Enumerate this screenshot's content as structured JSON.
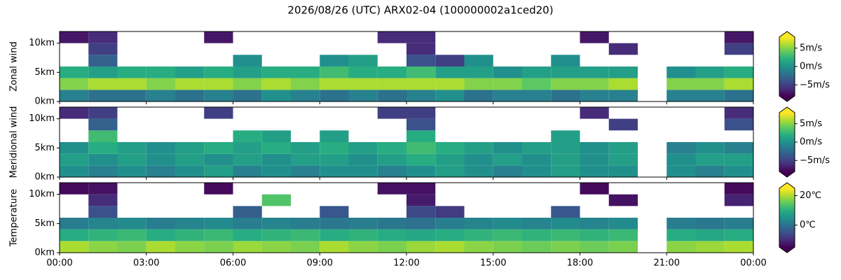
{
  "title": "2026/08/26 (UTC) ARX02-04 (100000002a1ced20)",
  "chart_data": [
    {
      "type": "heatmap",
      "ylabel": "Zonal wind",
      "colormap": "viridis",
      "extend": "both",
      "xbins": [
        0,
        1,
        2,
        3,
        4,
        5,
        6,
        7,
        8,
        9,
        10,
        11,
        12,
        13,
        14,
        15,
        16,
        17,
        18,
        19,
        20,
        21,
        22,
        23,
        24
      ],
      "ybins": [
        0,
        2,
        4,
        6,
        8,
        10,
        12
      ],
      "values": [
        [
          -1,
          -2,
          -2,
          -1,
          -2,
          -1,
          -2,
          0,
          -1,
          -2,
          -1,
          -2,
          -1,
          0,
          -2,
          -1,
          -1,
          -2,
          -1,
          -1,
          null,
          -1,
          -1,
          -2
        ],
        [
          5,
          6,
          6,
          5,
          6,
          6,
          5,
          6,
          5,
          6,
          6,
          6,
          6,
          6,
          5,
          5,
          4,
          5,
          5,
          6,
          null,
          5,
          5,
          6
        ],
        [
          2,
          1,
          2,
          2,
          1,
          2,
          1,
          2,
          2,
          3,
          2,
          2,
          3,
          1,
          1,
          0,
          1,
          1,
          1,
          1,
          null,
          0,
          1,
          2
        ],
        [
          null,
          -3,
          null,
          null,
          null,
          null,
          0,
          null,
          null,
          0,
          1,
          null,
          -4,
          -5,
          0,
          null,
          null,
          0,
          null,
          null,
          null,
          null,
          null,
          null
        ],
        [
          null,
          -5,
          null,
          null,
          null,
          null,
          null,
          null,
          null,
          null,
          null,
          null,
          -6,
          null,
          null,
          null,
          null,
          null,
          null,
          -6,
          null,
          null,
          null,
          -5
        ],
        [
          -7,
          -6,
          null,
          null,
          null,
          -7,
          null,
          null,
          null,
          null,
          null,
          -6,
          -6,
          null,
          null,
          null,
          null,
          null,
          -7,
          null,
          null,
          null,
          null,
          -7
        ]
      ],
      "xlim": [
        0,
        24
      ],
      "xticks": [
        0,
        3,
        6,
        9,
        12,
        15,
        18,
        21,
        24
      ],
      "ylim": [
        0,
        12
      ],
      "yticks": [
        {
          "value": 0,
          "label": "0km"
        },
        {
          "value": 5,
          "label": "5km"
        },
        {
          "value": 10,
          "label": "10km"
        }
      ],
      "clim": [
        -8,
        8
      ],
      "cticks": [
        {
          "value": -5,
          "label": "−5m/s"
        },
        {
          "value": 0,
          "label": "0m/s"
        },
        {
          "value": 5,
          "label": "5m/s"
        }
      ]
    },
    {
      "type": "heatmap",
      "ylabel": "Meridional wind",
      "colormap": "viridis",
      "extend": "both",
      "xbins": [
        0,
        1,
        2,
        3,
        4,
        5,
        6,
        7,
        8,
        9,
        10,
        11,
        12,
        13,
        14,
        15,
        16,
        17,
        18,
        19,
        20,
        21,
        22,
        23,
        24
      ],
      "ybins": [
        0,
        2,
        4,
        6,
        8,
        10,
        12
      ],
      "values": [
        [
          0,
          -1,
          0,
          -1,
          0,
          1,
          -1,
          0,
          -1,
          0,
          0,
          -1,
          0,
          1,
          0,
          -1,
          0,
          1,
          0,
          0,
          null,
          0,
          -1,
          0
        ],
        [
          1,
          0,
          1,
          0,
          1,
          0,
          1,
          0,
          1,
          1,
          0,
          1,
          2,
          1,
          0,
          1,
          0,
          1,
          0,
          1,
          null,
          0,
          1,
          1
        ],
        [
          0,
          2,
          1,
          0,
          1,
          2,
          1,
          2,
          1,
          2,
          1,
          2,
          3,
          2,
          1,
          0,
          1,
          1,
          0,
          1,
          null,
          -1,
          0,
          -1
        ],
        [
          null,
          3,
          null,
          null,
          null,
          null,
          2,
          1,
          null,
          1,
          null,
          null,
          2,
          null,
          null,
          null,
          null,
          1,
          null,
          null,
          null,
          null,
          null,
          null
        ],
        [
          null,
          -3,
          null,
          null,
          null,
          null,
          null,
          null,
          null,
          null,
          null,
          null,
          -4,
          null,
          null,
          null,
          null,
          null,
          null,
          -5,
          null,
          null,
          null,
          -4
        ],
        [
          -6,
          -5,
          null,
          null,
          null,
          -5,
          null,
          null,
          null,
          null,
          null,
          -5,
          -5,
          null,
          null,
          null,
          null,
          null,
          -6,
          null,
          null,
          null,
          null,
          -6
        ]
      ],
      "xlim": [
        0,
        24
      ],
      "xticks": [
        0,
        3,
        6,
        9,
        12,
        15,
        18,
        21,
        24
      ],
      "ylim": [
        0,
        12
      ],
      "yticks": [
        {
          "value": 0,
          "label": "0km"
        },
        {
          "value": 5,
          "label": "5km"
        },
        {
          "value": 10,
          "label": "10km"
        }
      ],
      "clim": [
        -8,
        8
      ],
      "cticks": [
        {
          "value": -5,
          "label": "−5m/s"
        },
        {
          "value": 0,
          "label": "0m/s"
        },
        {
          "value": 5,
          "label": "5m/s"
        }
      ]
    },
    {
      "type": "heatmap",
      "ylabel": "Temperature",
      "colormap": "viridis",
      "extend": "both",
      "xbins": [
        0,
        1,
        2,
        3,
        4,
        5,
        6,
        7,
        8,
        9,
        10,
        11,
        12,
        13,
        14,
        15,
        16,
        17,
        18,
        19,
        20,
        21,
        22,
        23,
        24
      ],
      "ybins": [
        0,
        2,
        4,
        6,
        8,
        10,
        12
      ],
      "values": [
        [
          20,
          18,
          17,
          20,
          18,
          17,
          19,
          18,
          17,
          20,
          18,
          17,
          19,
          20,
          18,
          17,
          16,
          17,
          16,
          17,
          null,
          18,
          19,
          20
        ],
        [
          10,
          11,
          12,
          10,
          11,
          12,
          10,
          11,
          12,
          10,
          11,
          10,
          9,
          10,
          11,
          12,
          11,
          12,
          11,
          12,
          null,
          10,
          9,
          10
        ],
        [
          2,
          3,
          4,
          2,
          3,
          4,
          2,
          3,
          2,
          1,
          2,
          1,
          0,
          2,
          3,
          4,
          3,
          4,
          3,
          4,
          null,
          2,
          1,
          2
        ],
        [
          null,
          -5,
          null,
          null,
          null,
          null,
          -3,
          null,
          null,
          -4,
          null,
          null,
          -6,
          -8,
          null,
          null,
          null,
          -4,
          null,
          null,
          null,
          null,
          null,
          null
        ],
        [
          null,
          -10,
          null,
          null,
          null,
          null,
          null,
          14,
          null,
          null,
          null,
          null,
          -12,
          null,
          null,
          null,
          null,
          null,
          null,
          -13,
          null,
          null,
          null,
          -11
        ],
        [
          -14,
          -13,
          null,
          null,
          null,
          -14,
          null,
          null,
          null,
          null,
          null,
          -13,
          -13,
          null,
          null,
          null,
          null,
          null,
          -14,
          null,
          null,
          null,
          null,
          -14
        ]
      ],
      "xlim": [
        0,
        24
      ],
      "xticks": [
        {
          "value": 0,
          "label": "00:00"
        },
        {
          "value": 3,
          "label": "03:00"
        },
        {
          "value": 6,
          "label": "06:00"
        },
        {
          "value": 9,
          "label": "09:00"
        },
        {
          "value": 12,
          "label": "12:00"
        },
        {
          "value": 15,
          "label": "15:00"
        },
        {
          "value": 18,
          "label": "18:00"
        },
        {
          "value": 21,
          "label": "21:00"
        },
        {
          "value": 24,
          "label": "00:00"
        }
      ],
      "ylim": [
        0,
        12
      ],
      "yticks": [
        {
          "value": 0,
          "label": "0km"
        },
        {
          "value": 5,
          "label": "5km"
        },
        {
          "value": 10,
          "label": "10km"
        }
      ],
      "clim": [
        -15,
        25
      ],
      "cticks": [
        {
          "value": 0,
          "label": "0℃"
        },
        {
          "value": 20,
          "label": "20℃"
        }
      ]
    }
  ]
}
